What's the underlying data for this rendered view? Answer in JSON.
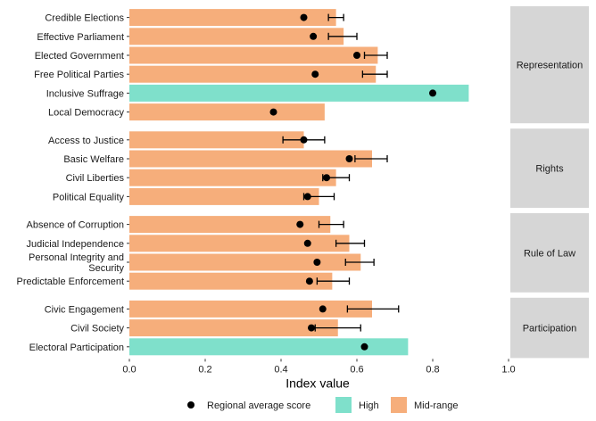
{
  "chart_data": {
    "type": "bar",
    "orientation": "horizontal",
    "xlabel": "Index value",
    "xlim": [
      0,
      1
    ],
    "xticks": [
      "0.0",
      "0.2",
      "0.4",
      "0.6",
      "0.8",
      "1.0"
    ],
    "grid": false,
    "legend_position": "bottom",
    "legend": {
      "point_label": "Regional average score",
      "items": [
        {
          "key": "High",
          "label": "High",
          "color": "#7fe0cb"
        },
        {
          "key": "Mid-range",
          "label": "Mid-range",
          "color": "#f6ae7b"
        }
      ]
    },
    "facets": [
      {
        "name": "Representation",
        "rows": [
          {
            "label": "Credible Elections",
            "value": 0.545,
            "category": "Mid-range",
            "avg": 0.46,
            "err": [
              0.525,
              0.565
            ]
          },
          {
            "label": "Effective Parliament",
            "value": 0.565,
            "category": "Mid-range",
            "avg": 0.485,
            "err": [
              0.525,
              0.6
            ]
          },
          {
            "label": "Elected Government",
            "value": 0.655,
            "category": "Mid-range",
            "avg": 0.6,
            "err": [
              0.62,
              0.68
            ]
          },
          {
            "label": "Free Political Parties",
            "value": 0.65,
            "category": "Mid-range",
            "avg": 0.49,
            "err": [
              0.615,
              0.68
            ]
          },
          {
            "label": "Inclusive Suffrage",
            "value": 0.895,
            "category": "High",
            "avg": 0.8,
            "err": null
          },
          {
            "label": "Local Democracy",
            "value": 0.515,
            "category": "Mid-range",
            "avg": 0.38,
            "err": null
          }
        ]
      },
      {
        "name": "Rights",
        "rows": [
          {
            "label": "Access to Justice",
            "value": 0.46,
            "category": "Mid-range",
            "avg": 0.46,
            "err": [
              0.405,
              0.515
            ]
          },
          {
            "label": "Basic Welfare",
            "value": 0.64,
            "category": "Mid-range",
            "avg": 0.58,
            "err": [
              0.595,
              0.68
            ]
          },
          {
            "label": "Civil Liberties",
            "value": 0.545,
            "category": "Mid-range",
            "avg": 0.52,
            "err": [
              0.51,
              0.58
            ]
          },
          {
            "label": "Political Equality",
            "value": 0.5,
            "category": "Mid-range",
            "avg": 0.47,
            "err": [
              0.46,
              0.54
            ]
          }
        ]
      },
      {
        "name": "Rule of Law",
        "rows": [
          {
            "label": "Absence of Corruption",
            "value": 0.53,
            "category": "Mid-range",
            "avg": 0.45,
            "err": [
              0.5,
              0.565
            ]
          },
          {
            "label": "Judicial Independence",
            "value": 0.58,
            "category": "Mid-range",
            "avg": 0.47,
            "err": [
              0.545,
              0.62
            ]
          },
          {
            "label": "Personal Integrity and Security",
            "label_lines": [
              "Personal Integrity and",
              "Security"
            ],
            "value": 0.61,
            "category": "Mid-range",
            "avg": 0.495,
            "err": [
              0.57,
              0.645
            ]
          },
          {
            "label": "Predictable Enforcement",
            "value": 0.535,
            "category": "Mid-range",
            "avg": 0.475,
            "err": [
              0.495,
              0.58
            ]
          }
        ]
      },
      {
        "name": "Participation",
        "rows": [
          {
            "label": "Civic Engagement",
            "value": 0.64,
            "category": "Mid-range",
            "avg": 0.51,
            "err": [
              0.575,
              0.71
            ]
          },
          {
            "label": "Civil Society",
            "value": 0.55,
            "category": "Mid-range",
            "avg": 0.48,
            "err": [
              0.49,
              0.61
            ]
          },
          {
            "label": "Electoral Participation",
            "value": 0.735,
            "category": "High",
            "avg": 0.62,
            "err": null
          }
        ]
      }
    ]
  }
}
